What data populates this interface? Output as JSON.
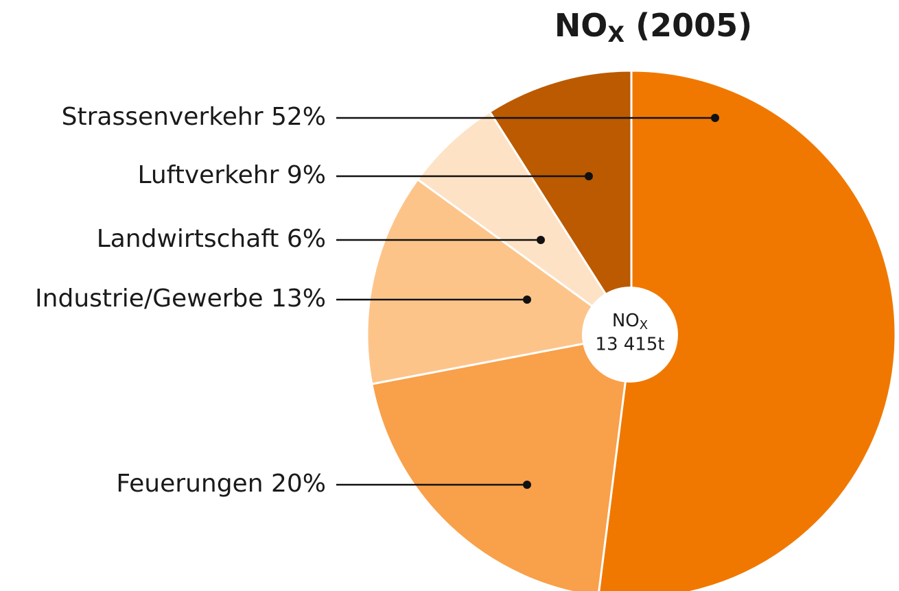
{
  "chart_data": {
    "type": "pie",
    "title": {
      "main": "NO",
      "subscript": "X",
      "suffix": " (2005)"
    },
    "center_label": {
      "main": "NO",
      "subscript": "X",
      "total": "13 415t"
    },
    "categories": [
      "Strassenverkehr",
      "Feuerungen",
      "Industrie/Gewerbe",
      "Landwirtschaft",
      "Luftverkehr"
    ],
    "values": [
      52,
      20,
      13,
      6,
      9
    ],
    "value_labels": [
      "52%",
      "20%",
      "13%",
      "6%",
      "9%"
    ],
    "colors": [
      "#f07800",
      "#f9a04a",
      "#fdc48a",
      "#fde2c6",
      "#bb5a00"
    ]
  }
}
